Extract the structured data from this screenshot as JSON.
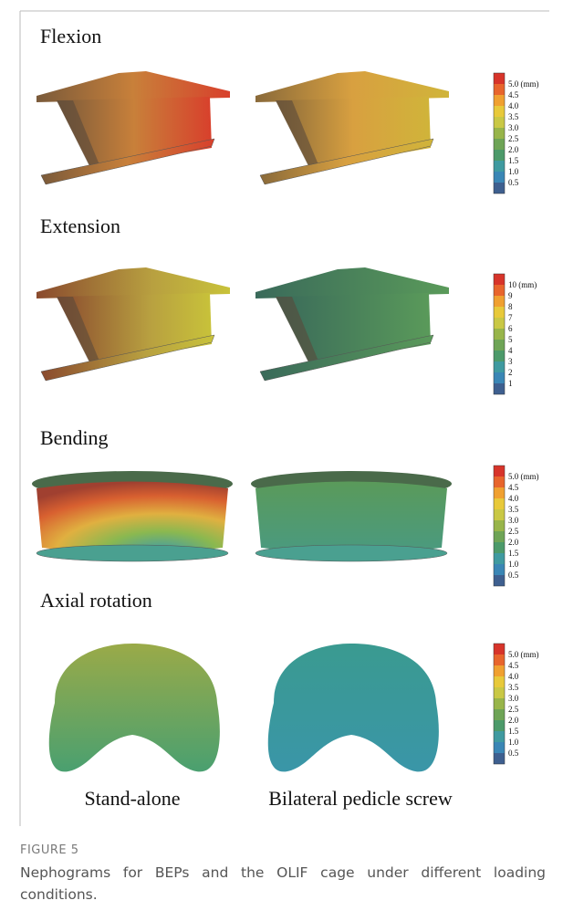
{
  "panels": [
    {
      "title": "Flexion",
      "colorbar": [
        "5.0 (mm)",
        "4.5",
        "4.0",
        "3.5",
        "3.0",
        "2.5",
        "2.0",
        "1.5",
        "1.0",
        "0.5"
      ]
    },
    {
      "title": "Extension",
      "colorbar": [
        "10 (mm)",
        "9",
        "8",
        "7",
        "6",
        "5",
        "4",
        "3",
        "2",
        "1"
      ]
    },
    {
      "title": "Bending",
      "colorbar": [
        "5.0 (mm)",
        "4.5",
        "4.0",
        "3.5",
        "3.0",
        "2.5",
        "2.0",
        "1.5",
        "1.0",
        "0.5"
      ]
    },
    {
      "title": "Axial rotation",
      "colorbar": [
        "5.0 (mm)",
        "4.5",
        "4.0",
        "3.5",
        "3.0",
        "2.5",
        "2.0",
        "1.5",
        "1.0",
        "0.5"
      ]
    }
  ],
  "columns": [
    "Stand-alone",
    "Bilateral pedicle screw"
  ],
  "caption": {
    "label": "FIGURE 5",
    "text": "Nephograms for BEPs and the OLIF cage under different loading conditions."
  }
}
